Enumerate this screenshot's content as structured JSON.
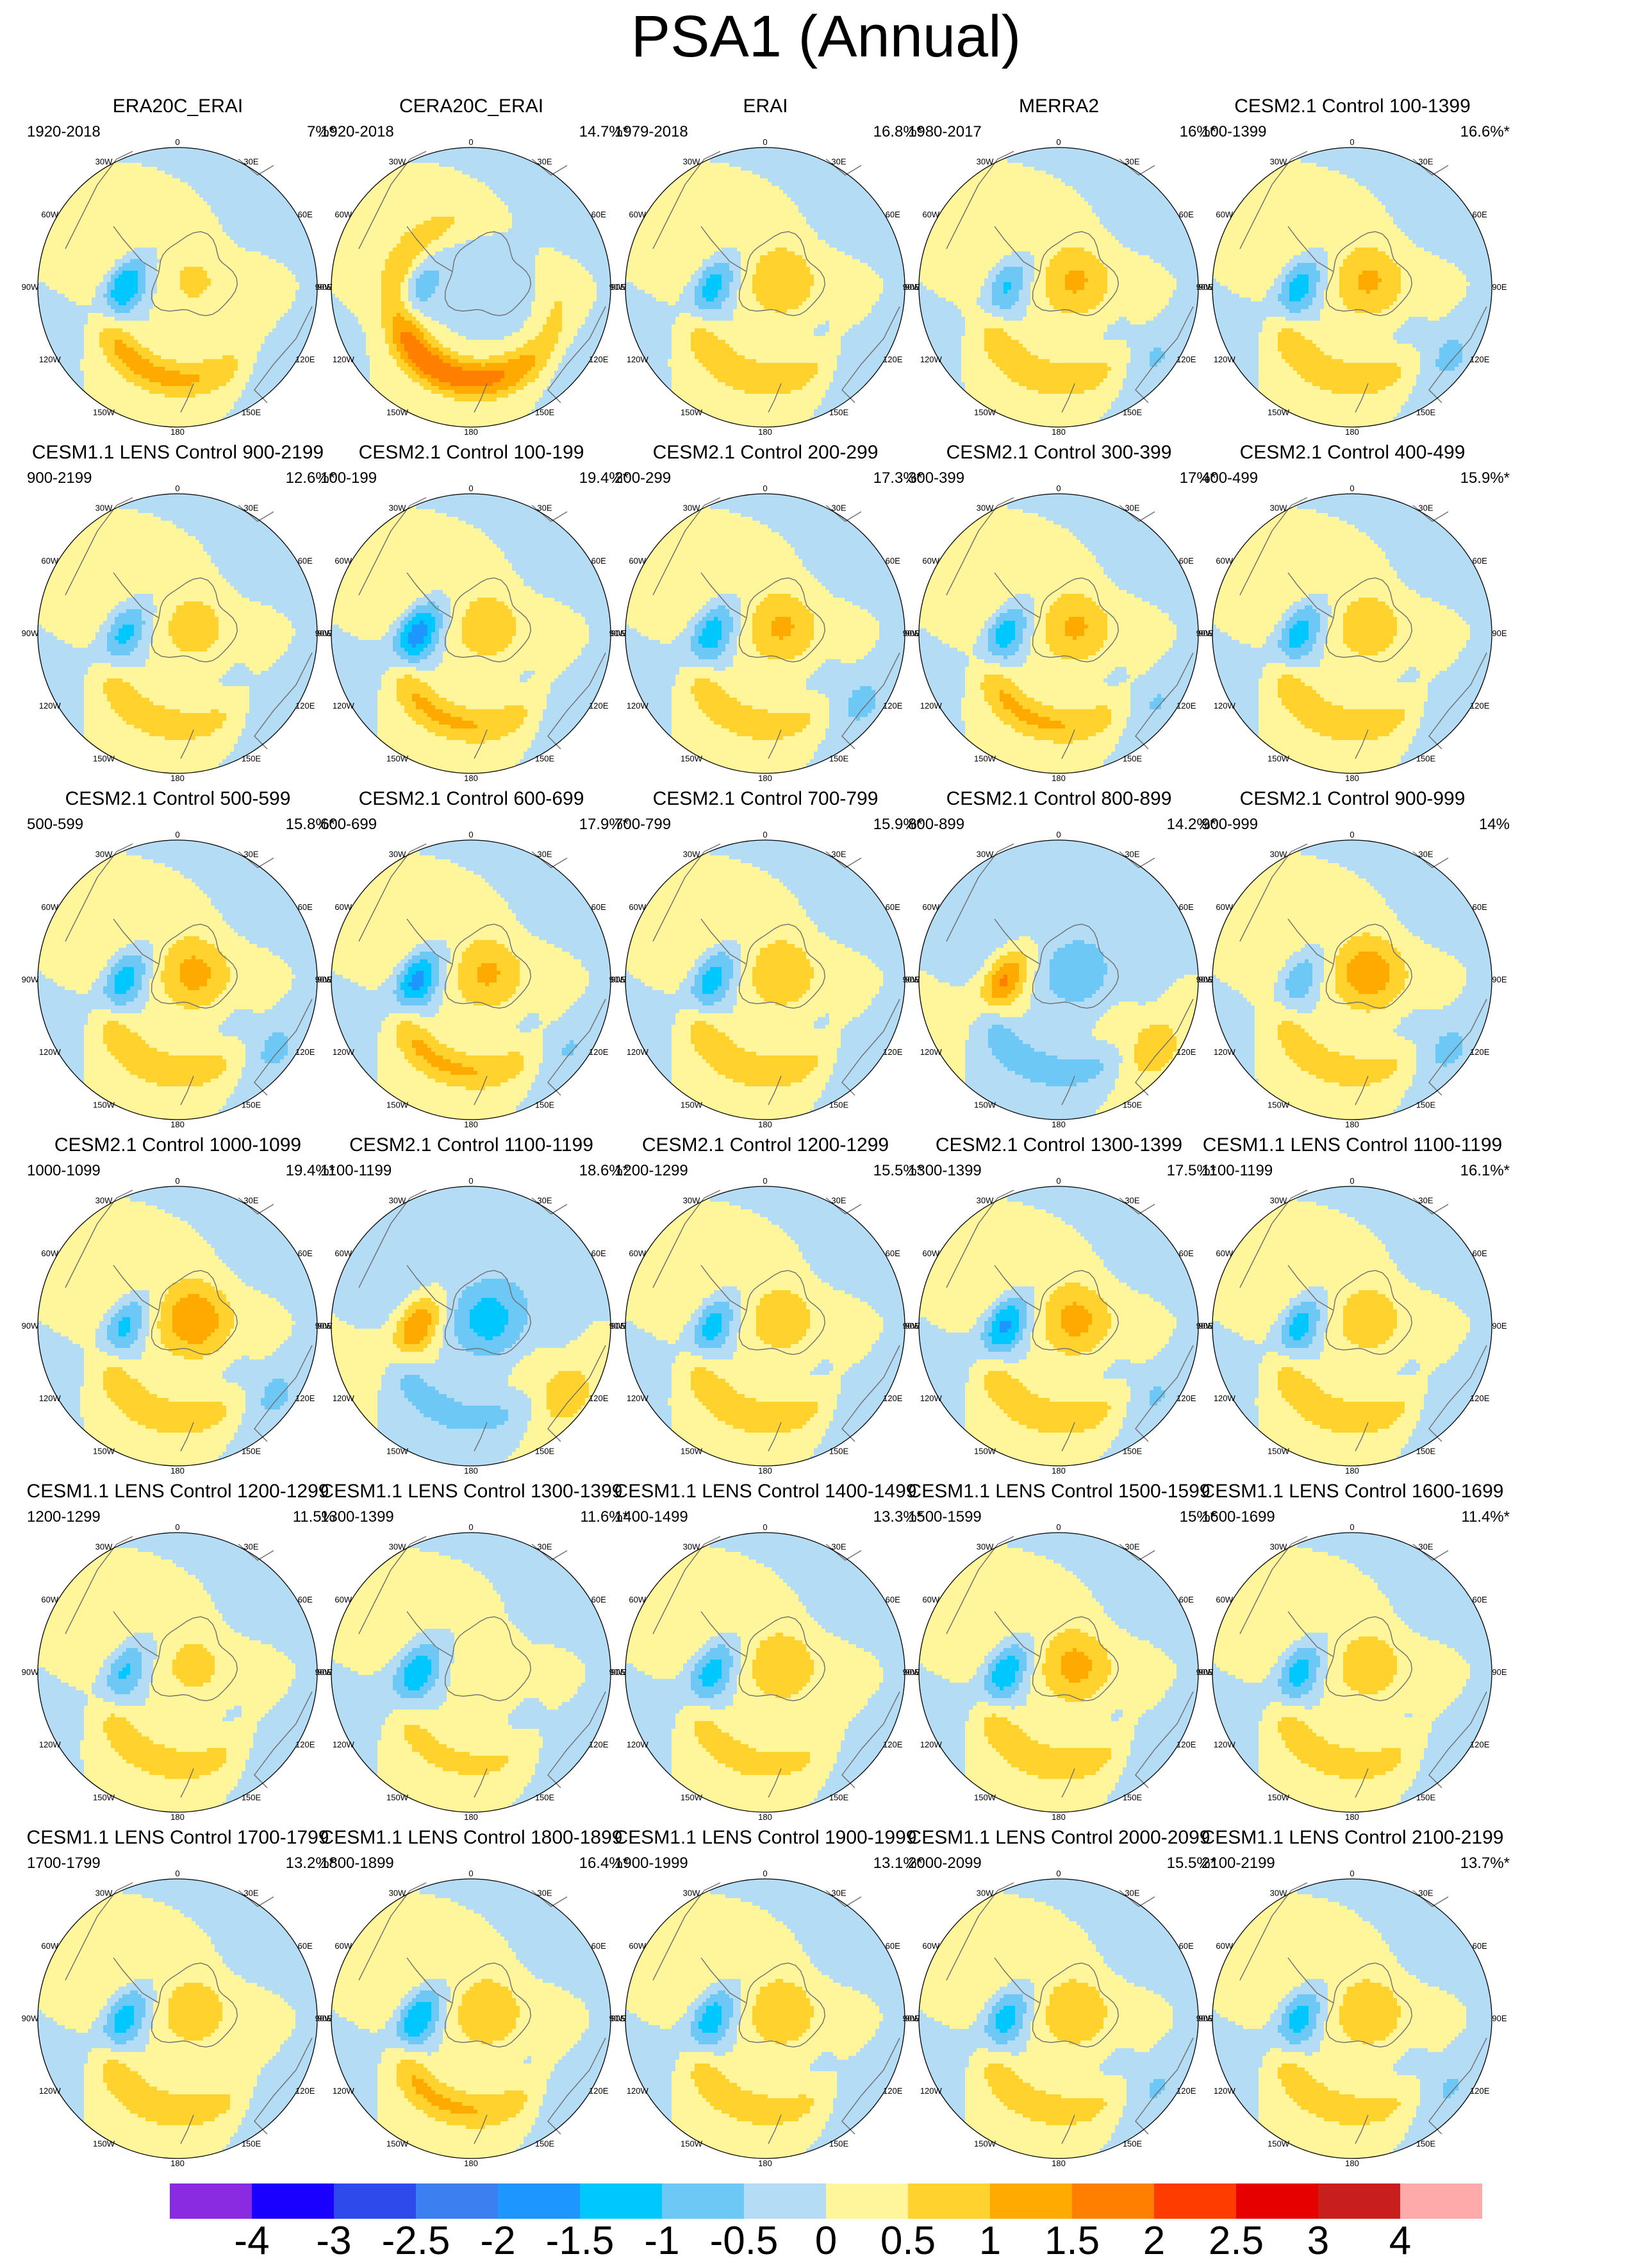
{
  "figure": {
    "title": "PSA1 (Annual)"
  },
  "longitude_labels": [
    "0",
    "30E",
    "60E",
    "90E",
    "120E",
    "150E",
    "180",
    "150W",
    "120W",
    "90W",
    "60W",
    "30W"
  ],
  "colorbar": {
    "colors": [
      "#8a2be2",
      "#1a00ff",
      "#2e4aea",
      "#3c7ff0",
      "#1e96ff",
      "#00c8ff",
      "#6ec8f5",
      "#b4dcf5",
      "#fff59b",
      "#ffd22e",
      "#ffaa00",
      "#ff7f00",
      "#ff3c00",
      "#e60000",
      "#c81e1e",
      "#ffaaaa"
    ],
    "tick_labels": [
      "-4",
      "-3",
      "-2.5",
      "-2",
      "-1.5",
      "-1",
      "-0.5",
      "0",
      "0.5",
      "1",
      "1.5",
      "2",
      "2.5",
      "3",
      "4"
    ]
  },
  "panels": [
    {
      "title": "ERA20C_ERAI",
      "period": "1920-2018",
      "variance": "7%*",
      "pattern": {
        "low": -1.9,
        "polar": 0.6,
        "ring": 1.2,
        "pacific": -0.5,
        "phase": 0
      }
    },
    {
      "title": "CERA20C_ERAI",
      "period": "1920-2018",
      "variance": "14.7%*",
      "pattern": {
        "low": -1.2,
        "polar": -0.4,
        "ring": 1.6,
        "pacific": -0.3,
        "phase": 1
      }
    },
    {
      "title": "ERAI",
      "period": "1979-2018",
      "variance": "16.8%*",
      "pattern": {
        "low": -1.6,
        "polar": 1.0,
        "ring": 1.0,
        "pacific": -0.6,
        "phase": 0
      }
    },
    {
      "title": "MERRA2",
      "period": "1980-2017",
      "variance": "16%*",
      "pattern": {
        "low": -1.4,
        "polar": 1.1,
        "ring": 1.0,
        "pacific": -0.7,
        "phase": 0
      }
    },
    {
      "title": "CESM2.1 Control 100-1399",
      "period": "100-1399",
      "variance": "16.6%*",
      "pattern": {
        "low": -1.7,
        "polar": 1.1,
        "ring": 1.0,
        "pacific": -0.8,
        "phase": 0
      }
    },
    {
      "title": "CESM1.1 LENS Control 900-2199",
      "period": "900-2199",
      "variance": "12.6%*",
      "pattern": {
        "low": -1.5,
        "polar": 0.8,
        "ring": 0.9,
        "pacific": -0.6,
        "phase": 0
      }
    },
    {
      "title": "CESM2.1 Control 100-199",
      "period": "100-199",
      "variance": "19.4%*",
      "pattern": {
        "low": -2.2,
        "polar": 0.9,
        "ring": 1.1,
        "pacific": -0.6,
        "phase": 0
      }
    },
    {
      "title": "CESM2.1 Control 200-299",
      "period": "200-299",
      "variance": "17.3%*",
      "pattern": {
        "low": -1.7,
        "polar": 1.1,
        "ring": 0.9,
        "pacific": -0.8,
        "phase": 0
      }
    },
    {
      "title": "CESM2.1 Control 300-399",
      "period": "300-399",
      "variance": "17%*",
      "pattern": {
        "low": -1.7,
        "polar": 1.1,
        "ring": 1.1,
        "pacific": -0.7,
        "phase": 0
      }
    },
    {
      "title": "CESM2.1 Control 400-499",
      "period": "400-499",
      "variance": "15.9%*",
      "pattern": {
        "low": -1.7,
        "polar": 0.9,
        "ring": 1.0,
        "pacific": -0.6,
        "phase": 0
      }
    },
    {
      "title": "CESM2.1 Control 500-599",
      "period": "500-599",
      "variance": "15.8%*",
      "pattern": {
        "low": -1.7,
        "polar": 1.2,
        "ring": 1.0,
        "pacific": -0.8,
        "phase": 0
      }
    },
    {
      "title": "CESM2.1 Control 600-699",
      "period": "600-699",
      "variance": "17.9%*",
      "pattern": {
        "low": -2.1,
        "polar": 1.1,
        "ring": 1.1,
        "pacific": -0.7,
        "phase": 0
      }
    },
    {
      "title": "CESM2.1 Control 700-799",
      "period": "700-799",
      "variance": "15.9%*",
      "pattern": {
        "low": -1.7,
        "polar": 1.0,
        "ring": 1.0,
        "pacific": -0.6,
        "phase": 0
      }
    },
    {
      "title": "CESM2.1 Control 800-899",
      "period": "800-899",
      "variance": "14.2%*",
      "pattern": {
        "low": 1.9,
        "polar": -0.9,
        "ring": -0.9,
        "pacific": 1.0,
        "phase": 0
      }
    },
    {
      "title": "CESM2.1 Control 900-999",
      "period": "900-999",
      "variance": "14%",
      "pattern": {
        "low": -1.2,
        "polar": 1.4,
        "ring": 0.9,
        "pacific": -0.8,
        "phase": 0
      }
    },
    {
      "title": "CESM2.1 Control 1000-1099",
      "period": "1000-1099",
      "variance": "19.4%*",
      "pattern": {
        "low": -1.5,
        "polar": 1.5,
        "ring": 1.0,
        "pacific": -0.8,
        "phase": 0
      }
    },
    {
      "title": "CESM2.1 Control 1100-1199",
      "period": "1100-1199",
      "variance": "18.6%*",
      "pattern": {
        "low": 1.8,
        "polar": -1.3,
        "ring": -0.8,
        "pacific": 1.0,
        "phase": 0
      }
    },
    {
      "title": "CESM2.1 Control 1200-1299",
      "period": "1200-1299",
      "variance": "15.5%*",
      "pattern": {
        "low": -1.6,
        "polar": 0.9,
        "ring": 1.0,
        "pacific": -0.6,
        "phase": 0
      }
    },
    {
      "title": "CESM2.1 Control 1300-1399",
      "period": "1300-1399",
      "variance": "17.5%*",
      "pattern": {
        "low": -2.0,
        "polar": 1.2,
        "ring": 1.0,
        "pacific": -0.7,
        "phase": 0
      }
    },
    {
      "title": "CESM1.1 LENS Control 1100-1199",
      "period": "1100-1199",
      "variance": "16.1%*",
      "pattern": {
        "low": -1.6,
        "polar": 0.9,
        "ring": 1.0,
        "pacific": -0.6,
        "phase": 0
      }
    },
    {
      "title": "CESM1.1 LENS Control 1200-1299",
      "period": "1200-1299",
      "variance": "11.5%",
      "pattern": {
        "low": -1.4,
        "polar": 0.7,
        "ring": 0.9,
        "pacific": -0.5,
        "phase": 0
      }
    },
    {
      "title": "CESM1.1 LENS Control 1300-1399",
      "period": "1300-1399",
      "variance": "11.6%*",
      "pattern": {
        "low": -1.7,
        "polar": 0.4,
        "ring": 0.7,
        "pacific": -0.5,
        "phase": 0
      }
    },
    {
      "title": "CESM1.1 LENS Control 1400-1499",
      "period": "1400-1499",
      "variance": "13.3%*",
      "pattern": {
        "low": -1.6,
        "polar": 1.0,
        "ring": 0.8,
        "pacific": -0.4,
        "phase": 0
      }
    },
    {
      "title": "CESM1.1 LENS Control 1500-1599",
      "period": "1500-1599",
      "variance": "15%*",
      "pattern": {
        "low": -1.8,
        "polar": 1.2,
        "ring": 1.0,
        "pacific": -0.6,
        "phase": 0
      }
    },
    {
      "title": "CESM1.1 LENS Control 1600-1699",
      "period": "1600-1699",
      "variance": "11.4%*",
      "pattern": {
        "low": -1.6,
        "polar": 0.9,
        "ring": 0.9,
        "pacific": -0.5,
        "phase": 0
      }
    },
    {
      "title": "CESM1.1 LENS Control 1700-1799",
      "period": "1700-1799",
      "variance": "13.2%*",
      "pattern": {
        "low": -1.7,
        "polar": 0.9,
        "ring": 1.0,
        "pacific": -0.5,
        "phase": 0
      }
    },
    {
      "title": "CESM1.1 LENS Control 1800-1899",
      "period": "1800-1899",
      "variance": "16.4%*",
      "pattern": {
        "low": -1.9,
        "polar": 1.0,
        "ring": 1.1,
        "pacific": -0.6,
        "phase": 0
      }
    },
    {
      "title": "CESM1.1 LENS Control 1900-1999",
      "period": "1900-1999",
      "variance": "13.1%*",
      "pattern": {
        "low": -1.7,
        "polar": 1.0,
        "ring": 0.9,
        "pacific": -0.6,
        "phase": 0
      }
    },
    {
      "title": "CESM1.1 LENS Control 2000-2099",
      "period": "2000-2099",
      "variance": "15.5%*",
      "pattern": {
        "low": -1.6,
        "polar": 1.0,
        "ring": 0.9,
        "pacific": -0.7,
        "phase": 0
      }
    },
    {
      "title": "CESM1.1 LENS Control 2100-2199",
      "period": "2100-2199",
      "variance": "13.7%*",
      "pattern": {
        "low": -1.6,
        "polar": 1.0,
        "ring": 0.9,
        "pacific": -0.7,
        "phase": 0
      }
    }
  ]
}
